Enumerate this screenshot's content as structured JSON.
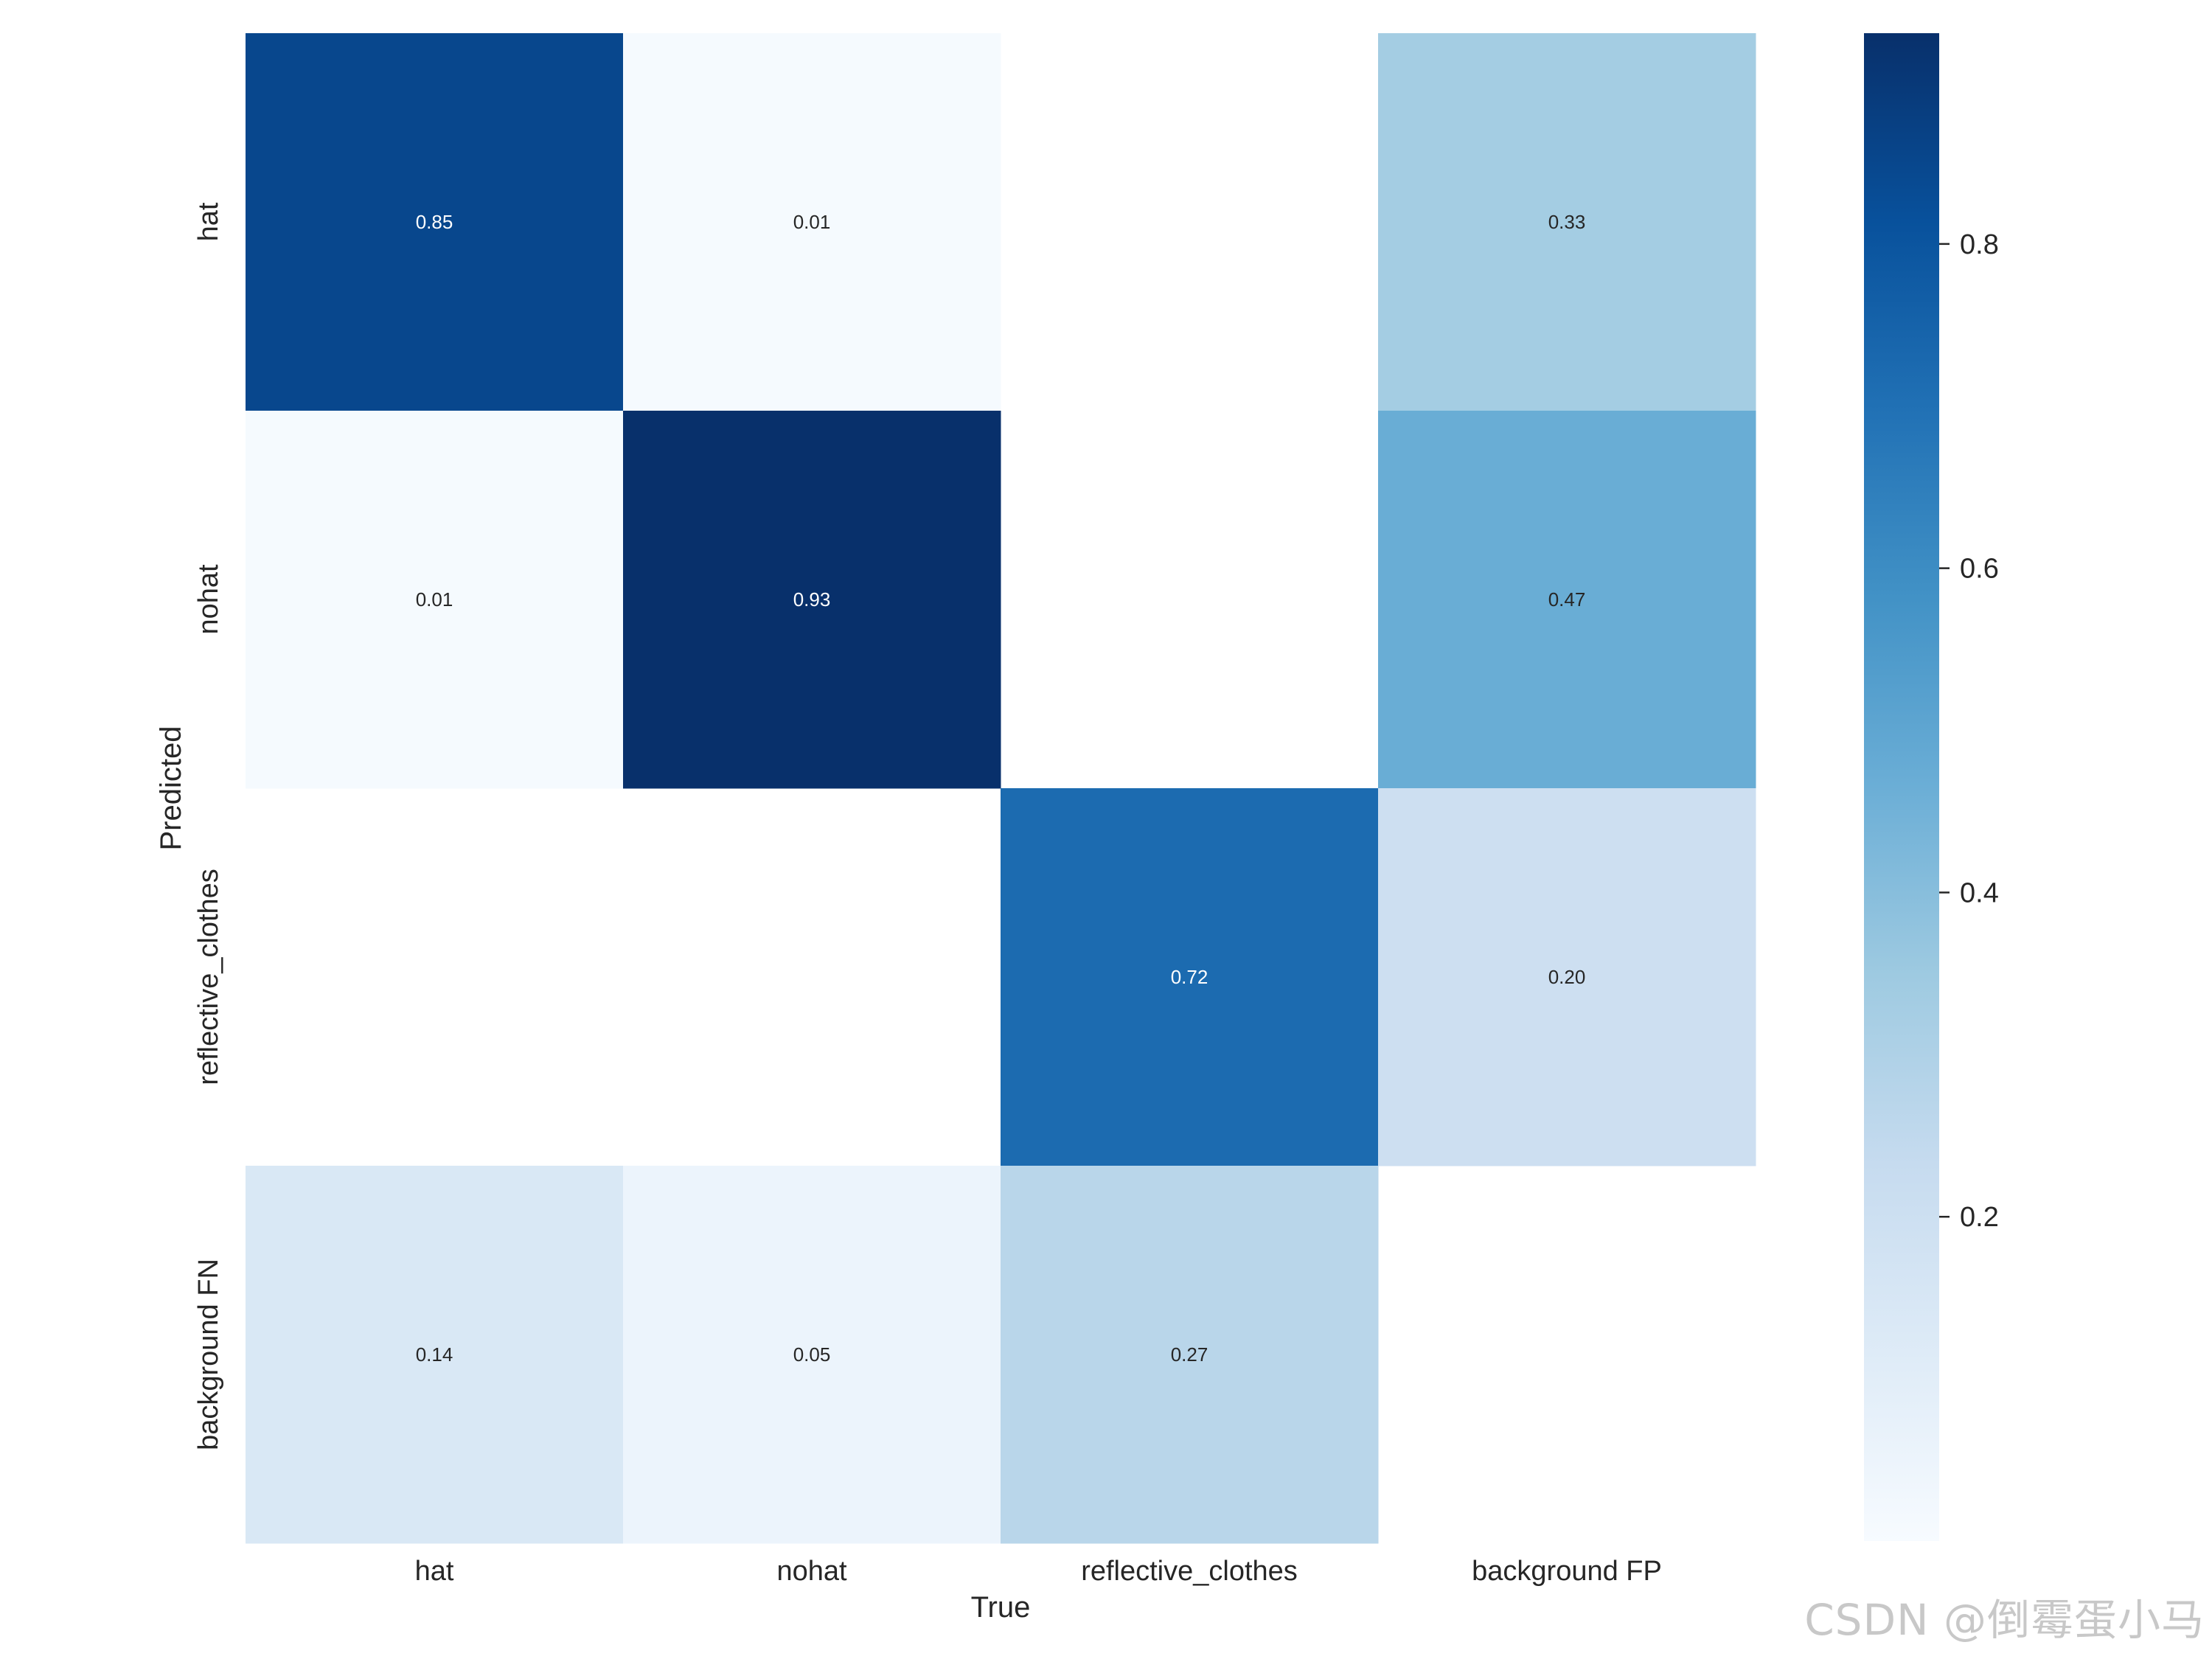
{
  "chart_data": {
    "type": "heatmap",
    "xlabel": "True",
    "ylabel": "Predicted",
    "x_categories": [
      "hat",
      "nohat",
      "reflective_clothes",
      "background FP"
    ],
    "y_categories": [
      "hat",
      "nohat",
      "reflective_clothes",
      "background FN"
    ],
    "matrix": [
      [
        0.85,
        0.01,
        null,
        0.33
      ],
      [
        0.01,
        0.93,
        null,
        0.47
      ],
      [
        null,
        null,
        0.72,
        0.2
      ],
      [
        0.14,
        0.05,
        0.27,
        null
      ]
    ],
    "value_format": "0.00",
    "colormap": "Blues",
    "colormap_stops": [
      "#f7fbff",
      "#deebf7",
      "#c6dbef",
      "#9ecae1",
      "#6baed6",
      "#4292c6",
      "#2171b5",
      "#08519c",
      "#08306b"
    ],
    "colorbar": {
      "vmin": 0.0,
      "vmax": 0.93,
      "ticks": [
        0.2,
        0.4,
        0.6,
        0.8
      ],
      "tick_labels": [
        "0.2",
        "0.4",
        "0.6",
        "0.8"
      ]
    },
    "grid": false
  },
  "watermark": "CSDN @倒霉蛋小马"
}
